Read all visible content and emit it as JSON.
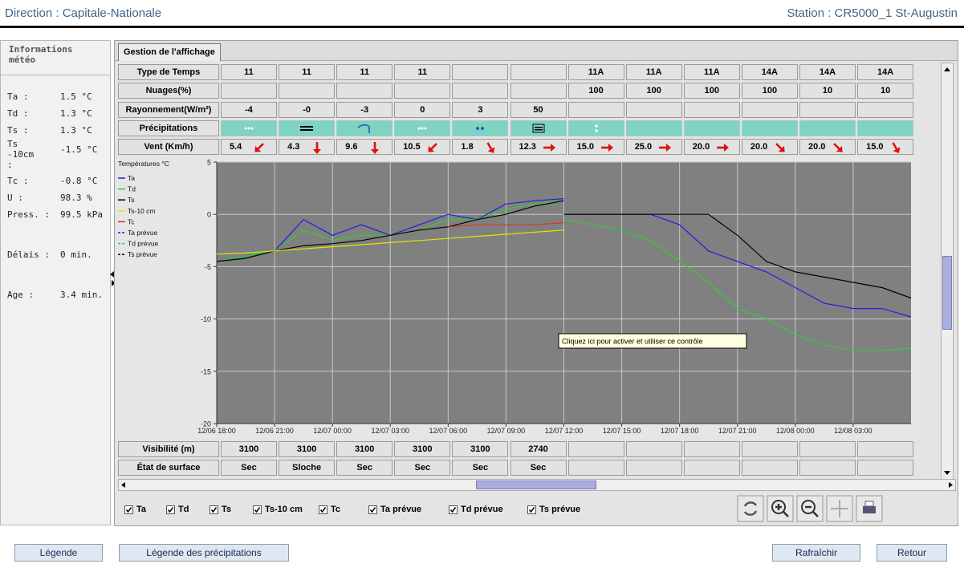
{
  "header": {
    "direction": "Direction : Capitale-Nationale",
    "station": "Station : CR5000_1 St-Augustin"
  },
  "sidebar": {
    "title": "Informations météo",
    "items": [
      {
        "label": "Ta :",
        "value": "1.5 °C"
      },
      {
        "label": "Td :",
        "value": "1.3 °C"
      },
      {
        "label": "Ts :",
        "value": "1.3 °C"
      },
      {
        "label": "Ts -10cm :",
        "value": "-1.5 °C"
      },
      {
        "label": "Tc :",
        "value": "-0.8 °C"
      },
      {
        "label": "U :",
        "value": "98.3 %"
      },
      {
        "label": "Press. :",
        "value": "99.5 kPa"
      },
      {
        "label": "Délais :",
        "value": "0 min."
      },
      {
        "label": "Age :",
        "value": "3.4 min."
      }
    ]
  },
  "tab": "Gestion de l'affichage",
  "top_table": {
    "rows": [
      {
        "label": "Type de Temps",
        "cells": [
          "11",
          "11",
          "11",
          "11",
          null,
          null,
          "11A",
          "11A",
          "11A",
          "14A",
          "14A",
          "14A"
        ]
      },
      {
        "label": "Nuages(%)",
        "cells": [
          null,
          null,
          null,
          null,
          null,
          null,
          "100",
          "100",
          "100",
          "100",
          "10",
          "10"
        ]
      },
      {
        "label": "Rayonnement(W/m²)",
        "cells": [
          "-4",
          "-0",
          "-3",
          "0",
          "3",
          "50"
        ]
      },
      {
        "label": "Précipitations"
      },
      {
        "label": "Vent (Km/h)",
        "cells": [
          "5.4",
          "4.3",
          "9.6",
          "10.5",
          "1.8",
          "12.3",
          "15.0",
          "25.0",
          "20.0",
          "20.0",
          "20.0",
          "15.0"
        ]
      }
    ]
  },
  "chart_data": {
    "type": "line",
    "legend_title": "Températures °C",
    "annotation": "Cliquez ici pour activer et utiliser ce contrôle",
    "grid": true,
    "x": [
      "12/06 18:00",
      "12/06 19:30",
      "12/06 21:00",
      "12/06 22:30",
      "12/07 00:00",
      "12/07 01:30",
      "12/07 03:00",
      "12/07 04:30",
      "12/07 06:00",
      "12/07 07:30",
      "12/07 09:00",
      "12/07 10:30",
      "12/07 12:00",
      "12/07 13:30",
      "12/07 15:00",
      "12/07 16:30",
      "12/07 18:00",
      "12/07 19:30",
      "12/07 21:00",
      "12/07 22:30",
      "12/08 00:00",
      "12/08 01:30",
      "12/08 03:00",
      "12/08 04:30",
      "12/08 06:00"
    ],
    "xlim": [
      "12/06 18:00",
      "12/08 06:00"
    ],
    "xticks": [
      "12/06 18:00",
      "12/06 21:00",
      "12/07 00:00",
      "12/07 03:00",
      "12/07 06:00",
      "12/07 09:00",
      "12/07 12:00",
      "12/07 15:00",
      "12/07 18:00",
      "12/07 21:00",
      "12/08 00:00",
      "12/08 03:00"
    ],
    "ylim": [
      -20,
      5
    ],
    "yticks": [
      5,
      0,
      -5,
      -10,
      -15,
      -20
    ],
    "series": [
      {
        "name": "Ta",
        "color": "#1f1fe6",
        "line_style": "solid",
        "values": [
          -4.5,
          -4.0,
          -3.5,
          -0.5,
          -2.0,
          -1.0,
          -2.0,
          -1.0,
          0.0,
          -0.5,
          1.0,
          1.3,
          1.5,
          null,
          null,
          null,
          null,
          null,
          null,
          null,
          null,
          null,
          null,
          null,
          null
        ]
      },
      {
        "name": "Td",
        "color": "#33cc33",
        "line_style": "solid",
        "values": [
          -4.5,
          -4.0,
          -3.5,
          -1.5,
          -2.5,
          -2.0,
          -2.0,
          -1.5,
          -0.5,
          -0.5,
          0.5,
          1.0,
          1.3,
          null,
          null,
          null,
          null,
          null,
          null,
          null,
          null,
          null,
          null,
          null,
          null
        ]
      },
      {
        "name": "Ts",
        "color": "#000000",
        "line_style": "solid",
        "values": [
          -4.5,
          -4.2,
          -3.5,
          -3.0,
          -2.8,
          -2.5,
          -2.0,
          -1.5,
          -1.2,
          -0.5,
          0.0,
          0.8,
          1.3,
          null,
          null,
          null,
          null,
          null,
          null,
          null,
          null,
          null,
          null,
          null,
          null
        ]
      },
      {
        "name": "Ts-10 cm",
        "color": "#e6e600",
        "line_style": "solid",
        "values": [
          -3.8,
          -3.7,
          -3.5,
          -3.3,
          -3.1,
          -2.9,
          -2.7,
          -2.5,
          -2.3,
          -2.1,
          -1.9,
          -1.7,
          -1.5,
          null,
          null,
          null,
          null,
          null,
          null,
          null,
          null,
          null,
          null,
          null,
          null
        ]
      },
      {
        "name": "Tc",
        "color": "#e03030",
        "line_style": "solid",
        "values": [
          null,
          null,
          null,
          null,
          null,
          null,
          null,
          null,
          -1.2,
          -1.0,
          -1.0,
          -1.0,
          -0.8,
          null,
          null,
          null,
          null,
          null,
          null,
          null,
          null,
          null,
          null,
          null,
          null
        ]
      },
      {
        "name": "Ta prévue",
        "color": "#1f1fe6",
        "line_style": "dashed",
        "values": [
          null,
          null,
          null,
          null,
          null,
          null,
          null,
          null,
          null,
          null,
          null,
          null,
          0.0,
          0.0,
          0.0,
          0.0,
          -1.0,
          -3.5,
          -4.5,
          -5.5,
          -7.0,
          -8.5,
          -9.0,
          -9.0,
          -9.8
        ]
      },
      {
        "name": "Td prévue",
        "color": "#33cc33",
        "line_style": "dashed",
        "values": [
          null,
          null,
          null,
          null,
          null,
          null,
          null,
          null,
          null,
          null,
          null,
          null,
          -0.5,
          -1.0,
          -1.5,
          -2.5,
          -4.5,
          -6.5,
          -9.0,
          -10.0,
          -11.5,
          -12.5,
          -13.0,
          -13.0,
          -12.8
        ]
      },
      {
        "name": "Ts prévue",
        "color": "#000000",
        "line_style": "dashed",
        "values": [
          null,
          null,
          null,
          null,
          null,
          null,
          null,
          null,
          null,
          null,
          null,
          null,
          0.0,
          0.0,
          0.0,
          0.0,
          0.0,
          0.0,
          -2.0,
          -4.5,
          -5.5,
          -6.0,
          -6.5,
          -7.0,
          -8.0
        ]
      }
    ]
  },
  "bottom_table": {
    "rows": [
      {
        "label": "Visibilité  (m)",
        "cells": [
          "3100",
          "3100",
          "3100",
          "3100",
          "3100",
          "2740"
        ]
      },
      {
        "label": "État de surface",
        "cells": [
          "Sec",
          "Sloche",
          "Sec",
          "Sec",
          "Sec",
          "Sec"
        ]
      }
    ]
  },
  "checkboxes": [
    "Ta",
    "Td",
    "Ts",
    "Ts-10 cm",
    "Tc",
    "Ta prévue",
    "Td prévue",
    "Ts prévue"
  ],
  "buttons": {
    "left": [
      "Légende",
      "Légende des précipitations"
    ],
    "right": [
      "Rafraîchir",
      "Retour"
    ]
  }
}
